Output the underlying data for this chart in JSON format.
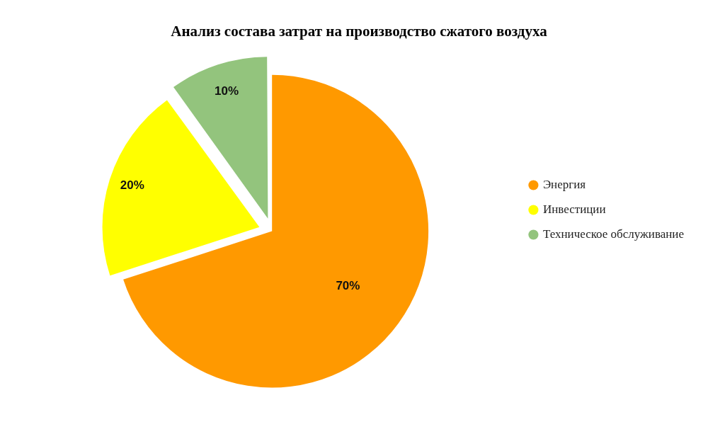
{
  "chart_data": {
    "type": "pie",
    "title": "Анализ состава затрат на производство сжатого воздуха",
    "categories": [
      "Энергия",
      "Инвестиции",
      "Техническое обслуживание"
    ],
    "values": [
      70,
      20,
      10
    ],
    "colors": [
      "#ff9900",
      "#ffff00",
      "#93c47d"
    ],
    "value_labels": [
      "70%",
      "20%",
      "10%"
    ],
    "legend": "right"
  }
}
